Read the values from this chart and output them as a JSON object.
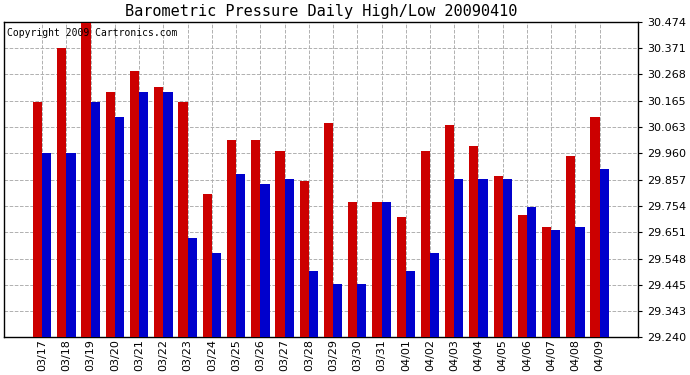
{
  "title": "Barometric Pressure Daily High/Low 20090410",
  "copyright": "Copyright 2009 Cartronics.com",
  "dates": [
    "03/17",
    "03/18",
    "03/19",
    "03/20",
    "03/21",
    "03/22",
    "03/23",
    "03/24",
    "03/25",
    "03/26",
    "03/27",
    "03/28",
    "03/29",
    "03/30",
    "03/31",
    "04/01",
    "04/02",
    "04/03",
    "04/04",
    "04/05",
    "04/06",
    "04/07",
    "04/08",
    "04/09"
  ],
  "highs": [
    30.16,
    30.37,
    30.47,
    30.2,
    30.28,
    30.22,
    30.16,
    29.8,
    30.01,
    30.01,
    29.97,
    29.85,
    30.08,
    29.77,
    29.77,
    29.71,
    29.97,
    30.07,
    29.99,
    29.87,
    29.72,
    29.67,
    29.95,
    30.1
  ],
  "lows": [
    29.96,
    29.96,
    30.16,
    30.1,
    30.2,
    30.2,
    29.63,
    29.57,
    29.88,
    29.84,
    29.86,
    29.5,
    29.45,
    29.45,
    29.77,
    29.5,
    29.57,
    29.86,
    29.86,
    29.86,
    29.75,
    29.66,
    29.67,
    29.9
  ],
  "high_color": "#cc0000",
  "low_color": "#0000cc",
  "bg_color": "#ffffff",
  "grid_color": "#b0b0b0",
  "ymin": 29.24,
  "ymax": 30.474,
  "yticks": [
    29.24,
    29.343,
    29.445,
    29.548,
    29.651,
    29.754,
    29.857,
    29.96,
    30.063,
    30.165,
    30.268,
    30.371,
    30.474
  ],
  "title_fontsize": 11,
  "tick_fontsize": 8,
  "copyright_fontsize": 7
}
